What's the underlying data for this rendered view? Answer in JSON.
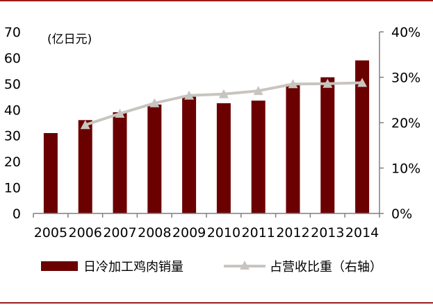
{
  "chart_data": {
    "type": "bar",
    "categories": [
      "2005",
      "2006",
      "2007",
      "2008",
      "2009",
      "2010",
      "2011",
      "2012",
      "2013",
      "2014"
    ],
    "series": [
      {
        "name": "日冷加工鸡肉销量",
        "type": "bar",
        "axis": "left",
        "color": "#6b0000",
        "values": [
          31,
          36,
          39,
          42,
          45,
          42.5,
          43.5,
          50,
          52.5,
          59
        ]
      },
      {
        "name": "占营收比重（右轴）",
        "type": "line",
        "axis": "right",
        "color": "#c8c5c0",
        "values": [
          null,
          19.5,
          22,
          24.3,
          26,
          26.3,
          27,
          28.5,
          28.6,
          28.8
        ]
      }
    ],
    "left_axis": {
      "unit_label": "(亿日元)",
      "ylim": [
        0,
        70
      ],
      "ticks": [
        "0",
        "10",
        "20",
        "30",
        "40",
        "50",
        "60",
        "70"
      ]
    },
    "right_axis": {
      "ylim": [
        0,
        40
      ],
      "ticks": [
        "0%",
        "10%",
        "20%",
        "30%",
        "40%"
      ]
    },
    "legend": {
      "position": "bottom"
    },
    "grid": false,
    "frame_color": "#9b1c1c"
  }
}
